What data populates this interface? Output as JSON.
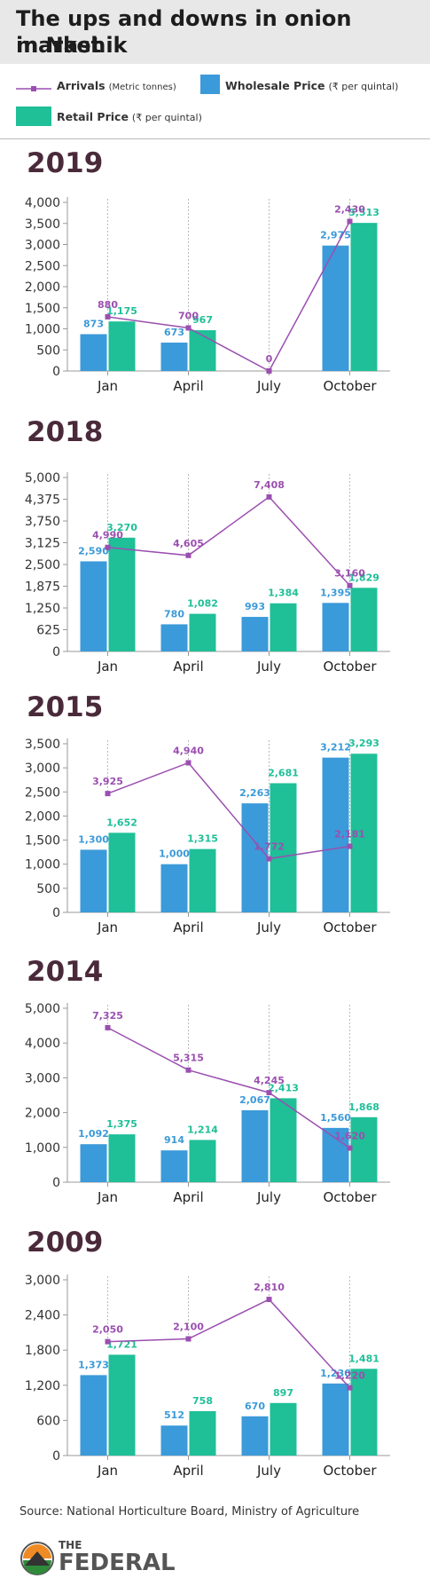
{
  "title": {
    "line1": "The ups and downs in onion market",
    "line2": "in Nashik"
  },
  "legend": {
    "arrivals_label": "Arrivals",
    "arrivals_unit": "(Metric tonnes)",
    "wholesale_label": "Wholesale Price",
    "wholesale_unit": "(₹ per quintal)",
    "retail_label": "Retail Price",
    "retail_unit": "(₹ per quintal)"
  },
  "colors": {
    "wholesale": "#3b9ad9",
    "retail": "#1fbf98",
    "arrivals": "#9b4fb0",
    "year": "#4a2a3a"
  },
  "chart_data": [
    {
      "type": "bar",
      "title": "2019",
      "categories": [
        "Jan",
        "April",
        "July",
        "October"
      ],
      "ylim": [
        0,
        4000
      ],
      "yticks": [
        0,
        500,
        1000,
        1500,
        2000,
        2500,
        3000,
        3500,
        4000
      ],
      "series": [
        {
          "name": "Wholesale Price",
          "values": [
            873,
            673,
            null,
            2975
          ],
          "labels": [
            "873",
            "673",
            "",
            "2,975"
          ]
        },
        {
          "name": "Retail Price",
          "values": [
            1175,
            967,
            null,
            3513
          ],
          "labels": [
            "1,175",
            "967",
            "",
            "3,513"
          ]
        }
      ],
      "arrivals": {
        "name": "Arrivals",
        "values": [
          880,
          700,
          0,
          2430
        ],
        "labels": [
          "880",
          "700",
          "0",
          "2,430"
        ]
      }
    },
    {
      "type": "bar",
      "title": "2018",
      "categories": [
        "Jan",
        "April",
        "July",
        "October"
      ],
      "ylim": [
        0,
        5000
      ],
      "yticks": [
        0,
        625,
        1250,
        1875,
        2500,
        3125,
        3750,
        4375,
        5000
      ],
      "series": [
        {
          "name": "Wholesale Price",
          "values": [
            2590,
            780,
            993,
            1395
          ],
          "labels": [
            "2,590",
            "780",
            "993",
            "1,395"
          ]
        },
        {
          "name": "Retail Price",
          "values": [
            3270,
            1082,
            1384,
            1829
          ],
          "labels": [
            "3,270",
            "1,082",
            "1,384",
            "1,829"
          ]
        }
      ],
      "arrivals": {
        "name": "Arrivals",
        "values": [
          4990,
          4605,
          7408,
          3160
        ],
        "labels": [
          "4,990",
          "4,605",
          "7,408",
          "3,160"
        ]
      }
    },
    {
      "type": "bar",
      "title": "2015",
      "categories": [
        "Jan",
        "April",
        "July",
        "October"
      ],
      "ylim": [
        0,
        3500
      ],
      "yticks": [
        0,
        500,
        1000,
        1500,
        2000,
        2500,
        3000,
        3500
      ],
      "series": [
        {
          "name": "Wholesale Price",
          "values": [
            1300,
            1000,
            2263,
            3212
          ],
          "labels": [
            "1,300",
            "1,000",
            "2,263",
            "3,212"
          ]
        },
        {
          "name": "Retail Price",
          "values": [
            1652,
            1315,
            2681,
            3293
          ],
          "labels": [
            "1,652",
            "1,315",
            "2,681",
            "3,293"
          ]
        }
      ],
      "arrivals": {
        "name": "Arrivals",
        "values": [
          3925,
          4940,
          1772,
          2181
        ],
        "labels": [
          "3,925",
          "4,940",
          "1,772",
          "2,181"
        ]
      }
    },
    {
      "type": "bar",
      "title": "2014",
      "categories": [
        "Jan",
        "April",
        "July",
        "October"
      ],
      "ylim": [
        0,
        5000
      ],
      "yticks": [
        0,
        1000,
        2000,
        3000,
        4000,
        5000
      ],
      "series": [
        {
          "name": "Wholesale Price",
          "values": [
            1092,
            914,
            2067,
            1560
          ],
          "labels": [
            "1,092",
            "914",
            "2,067",
            "1,560"
          ]
        },
        {
          "name": "Retail Price",
          "values": [
            1375,
            1214,
            2413,
            1868
          ],
          "labels": [
            "1,375",
            "1,214",
            "2,413",
            "1,868"
          ]
        }
      ],
      "arrivals": {
        "name": "Arrivals",
        "values": [
          7325,
          5315,
          4245,
          1620
        ],
        "labels": [
          "7,325",
          "5,315",
          "4,245",
          "1,620"
        ]
      }
    },
    {
      "type": "bar",
      "title": "2009",
      "categories": [
        "Jan",
        "April",
        "July",
        "October"
      ],
      "ylim": [
        0,
        3000
      ],
      "yticks": [
        0,
        600,
        1200,
        1800,
        2400,
        3000
      ],
      "series": [
        {
          "name": "Wholesale Price",
          "values": [
            1373,
            512,
            670,
            1230
          ],
          "labels": [
            "1,373",
            "512",
            "670",
            "1,230"
          ]
        },
        {
          "name": "Retail Price",
          "values": [
            1721,
            758,
            897,
            1481
          ],
          "labels": [
            "1,721",
            "758",
            "897",
            "1,481"
          ]
        }
      ],
      "arrivals": {
        "name": "Arrivals",
        "values": [
          2050,
          2100,
          2810,
          1220
        ],
        "labels": [
          "2,050",
          "2,100",
          "2,810",
          "1,220"
        ]
      }
    }
  ],
  "source": "Source: National Horticulture Board, Ministry of Agriculture",
  "logo": {
    "line1": "THE",
    "line2": "FEDERAL"
  }
}
